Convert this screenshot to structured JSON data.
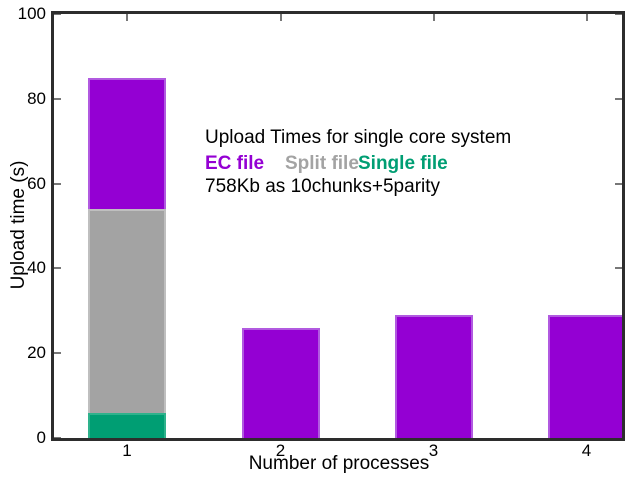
{
  "chart_data": {
    "type": "bar",
    "title": "Upload Times for single core system",
    "annotation": "758Kb as 10chunks+5parity",
    "xlabel": "Number of processes",
    "ylabel": "Upload time (s)",
    "ylim": [
      0,
      100
    ],
    "yticks": [
      0,
      20,
      40,
      60,
      80,
      100
    ],
    "categories": [
      "1",
      "2",
      "3",
      "4"
    ],
    "grid": false,
    "legend_position": "inside-top-center-colored-text",
    "legend": [
      {
        "label": "EC file",
        "color": "#9400d3",
        "edge": "#b15ae0"
      },
      {
        "label": "Split file",
        "color": "#a3a3a3",
        "edge": "#bfbfbf"
      },
      {
        "label": "Single file",
        "color": "#009e73",
        "edge": "#2eb28c"
      }
    ],
    "bars": [
      {
        "x": "1",
        "segments": [
          {
            "series": "Single file",
            "from": 0,
            "to": 6
          },
          {
            "series": "Split file",
            "from": 6,
            "to": 54
          },
          {
            "series": "EC file",
            "from": 54,
            "to": 85
          }
        ]
      },
      {
        "x": "2",
        "segments": [
          {
            "series": "EC file",
            "from": 0,
            "to": 26
          }
        ]
      },
      {
        "x": "3",
        "segments": [
          {
            "series": "EC file",
            "from": 0,
            "to": 29
          }
        ]
      },
      {
        "x": "4",
        "segments": [
          {
            "series": "EC file",
            "from": 0,
            "to": 29
          }
        ]
      }
    ]
  },
  "palette": {
    "frame": "#2d2d2d",
    "tick": "#777777",
    "text": "#000000",
    "background": "#ffffff"
  }
}
